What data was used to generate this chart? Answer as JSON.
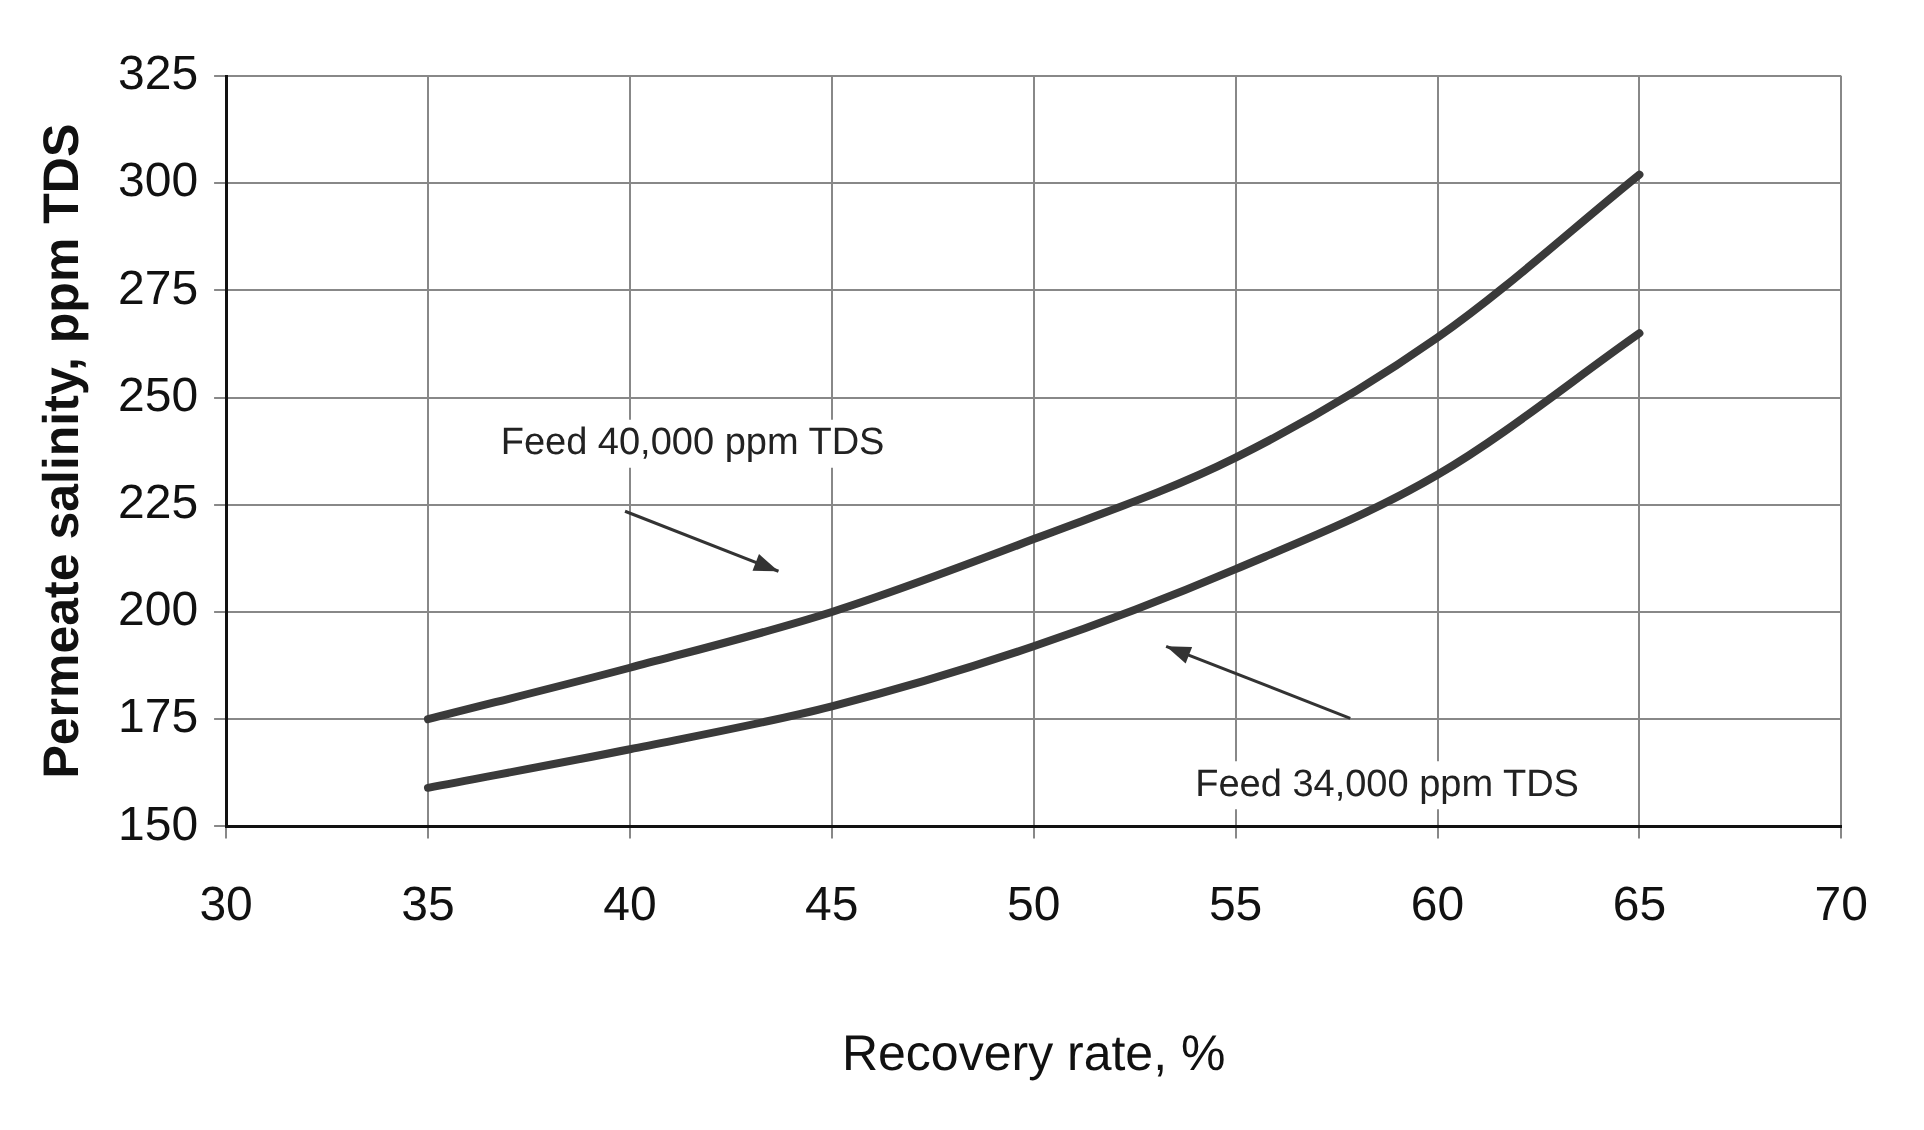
{
  "chart_data": {
    "type": "line",
    "xlabel": "Recovery rate, %",
    "ylabel": "Permeate salinity, ppm TDS",
    "xlim": [
      30,
      70
    ],
    "xticks": [
      30,
      35,
      40,
      45,
      50,
      55,
      60,
      65,
      70
    ],
    "ylim": [
      150,
      325
    ],
    "yticks": [
      150,
      175,
      200,
      225,
      250,
      275,
      300,
      325
    ],
    "grid": true,
    "legend": false,
    "marker": "none",
    "line_style": "solid",
    "series": [
      {
        "color": "#3a3a3a",
        "x": [
          35,
          40,
          45,
          50,
          55,
          60,
          65
        ],
        "values": [
          175,
          187,
          200,
          217,
          236,
          264,
          302
        ]
      },
      {
        "color": "#3a3a3a",
        "x": [
          35,
          40,
          45,
          50,
          55,
          60,
          65
        ],
        "values": [
          159,
          168,
          178,
          192,
          210,
          232,
          265
        ]
      }
    ],
    "annotations": [
      "Feed 40,000 ppm TDS",
      "Feed 34,000 ppm TDS"
    ]
  }
}
